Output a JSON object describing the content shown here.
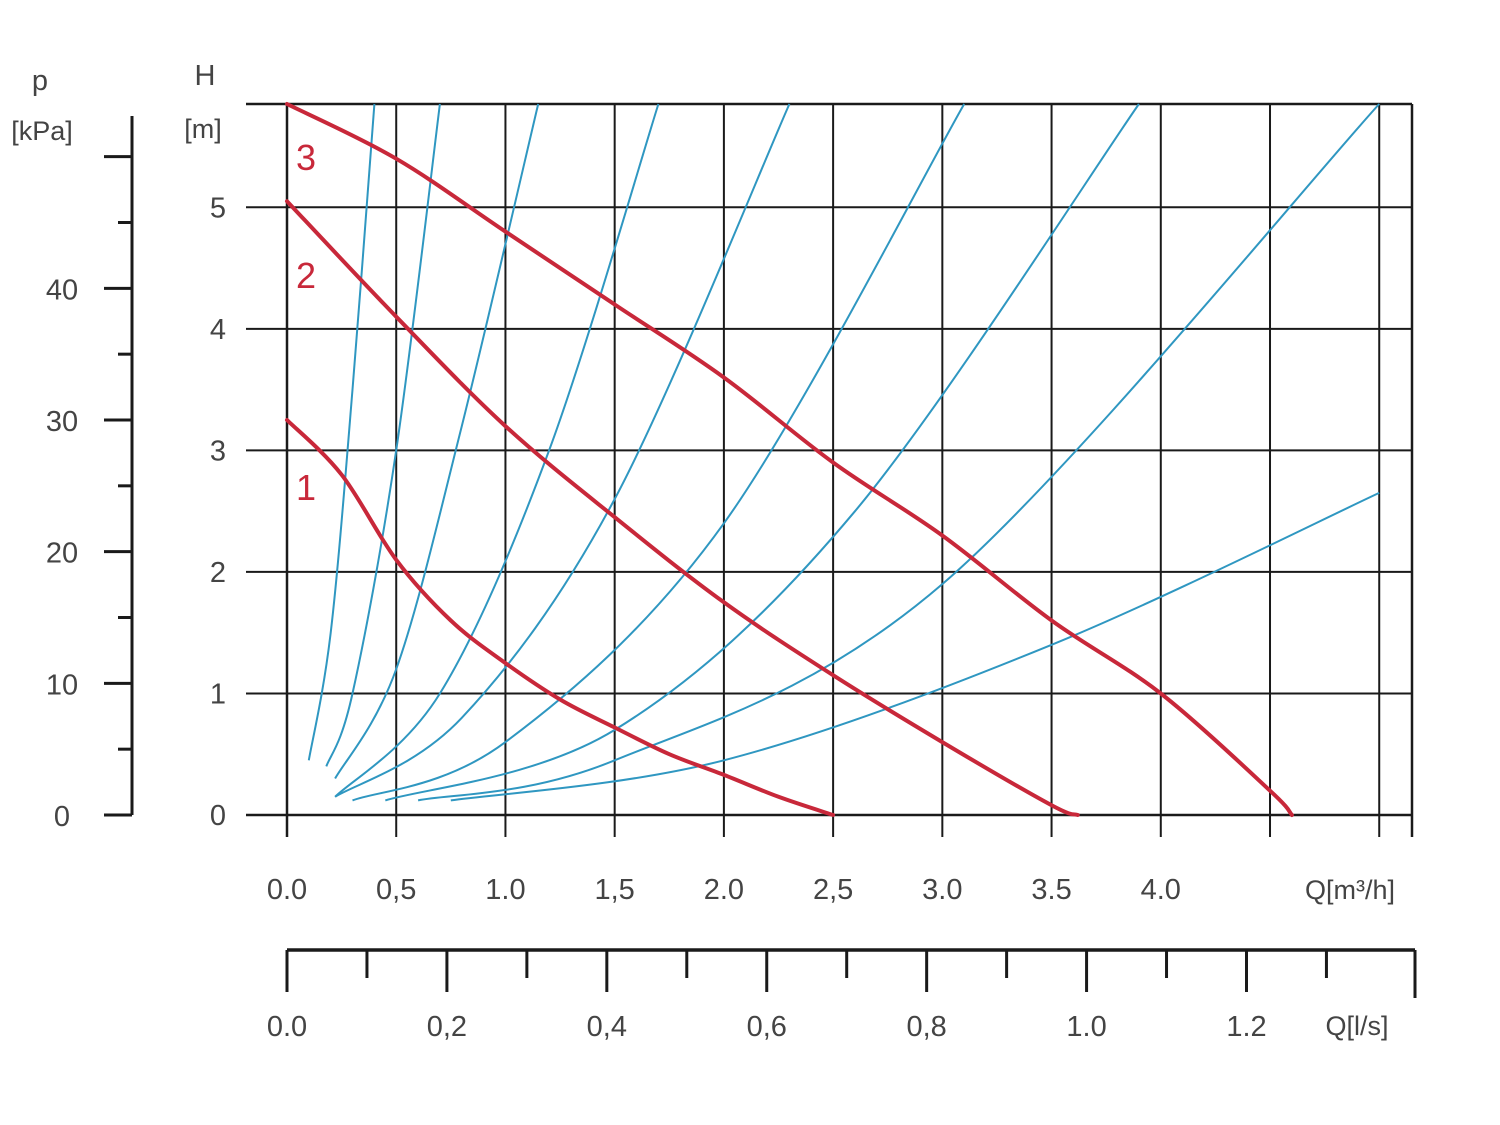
{
  "chart_data": {
    "type": "line",
    "left_axis_p": {
      "title": "p",
      "unit": "[kPa]",
      "tick_labels": [
        "0",
        "10",
        "20",
        "30",
        "40"
      ],
      "range": [
        0,
        54
      ]
    },
    "left_axis_h": {
      "title": "H",
      "unit": "[m]",
      "tick_labels": [
        "0",
        "1",
        "2",
        "3",
        "4",
        "5"
      ],
      "range": [
        0,
        5.85
      ]
    },
    "x_axis_m3h": {
      "label": "Q[m³/h]",
      "tick_labels": [
        "0.0",
        "0,5",
        "1.0",
        "1,5",
        "2.0",
        "2,5",
        "3.0",
        "3.5",
        "4.0"
      ],
      "range": [
        0,
        5.15
      ]
    },
    "x_axis_ls": {
      "label": "Q[l/s]",
      "tick_labels": [
        "0.0",
        "0,2",
        "0,4",
        "0,6",
        "0,8",
        "1.0",
        "1.2"
      ],
      "range": [
        0,
        1.407
      ]
    },
    "grid": true,
    "pump_curves": [
      {
        "label": "1",
        "color": "#c8283a",
        "x": [
          0.0,
          0.25,
          0.5,
          0.75,
          1.0,
          1.25,
          1.5,
          1.75,
          2.0,
          2.25,
          2.5
        ],
        "y": [
          3.25,
          2.8,
          2.1,
          1.6,
          1.25,
          0.95,
          0.72,
          0.5,
          0.33,
          0.15,
          0.0
        ]
      },
      {
        "label": "2",
        "color": "#c8283a",
        "x": [
          0.0,
          0.5,
          1.0,
          1.5,
          2.0,
          2.5,
          3.0,
          3.5,
          3.62
        ],
        "y": [
          5.05,
          4.1,
          3.2,
          2.45,
          1.75,
          1.15,
          0.6,
          0.08,
          0.0
        ]
      },
      {
        "label": "3",
        "color": "#c8283a",
        "x": [
          0.0,
          0.5,
          1.0,
          1.5,
          2.0,
          2.5,
          3.0,
          3.5,
          4.0,
          4.5,
          4.6
        ],
        "y": [
          5.85,
          5.4,
          4.8,
          4.2,
          3.6,
          2.9,
          2.3,
          1.6,
          1.0,
          0.2,
          0.0
        ]
      }
    ],
    "system_curves": [
      {
        "color": "#2f97c1",
        "x": [
          0.1,
          0.2,
          0.3,
          0.4
        ],
        "y": [
          0.45,
          1.5,
          3.5,
          5.85
        ]
      },
      {
        "color": "#2f97c1",
        "x": [
          0.18,
          0.3,
          0.5,
          0.7
        ],
        "y": [
          0.4,
          1.0,
          3.0,
          5.85
        ]
      },
      {
        "color": "#2f97c1",
        "x": [
          0.22,
          0.5,
          0.8,
          1.15
        ],
        "y": [
          0.3,
          1.2,
          3.2,
          5.85
        ]
      },
      {
        "color": "#2f97c1",
        "x": [
          0.22,
          0.7,
          1.2,
          1.7
        ],
        "y": [
          0.15,
          1.0,
          3.0,
          5.85
        ]
      },
      {
        "color": "#2f97c1",
        "x": [
          0.22,
          0.8,
          1.5,
          2.3
        ],
        "y": [
          0.15,
          0.8,
          2.6,
          5.85
        ]
      },
      {
        "color": "#2f97c1",
        "x": [
          0.3,
          1.0,
          2.0,
          3.1
        ],
        "y": [
          0.12,
          0.6,
          2.4,
          5.85
        ]
      },
      {
        "color": "#2f97c1",
        "x": [
          0.45,
          1.5,
          2.6,
          3.9
        ],
        "y": [
          0.12,
          0.7,
          2.5,
          5.85
        ]
      },
      {
        "color": "#2f97c1",
        "x": [
          0.6,
          1.5,
          3.0,
          5.0
        ],
        "y": [
          0.12,
          0.45,
          1.9,
          5.85
        ]
      },
      {
        "color": "#2f97c1",
        "x": [
          0.75,
          2.0,
          3.5,
          5.0
        ],
        "y": [
          0.12,
          0.45,
          1.4,
          2.65
        ]
      }
    ]
  }
}
